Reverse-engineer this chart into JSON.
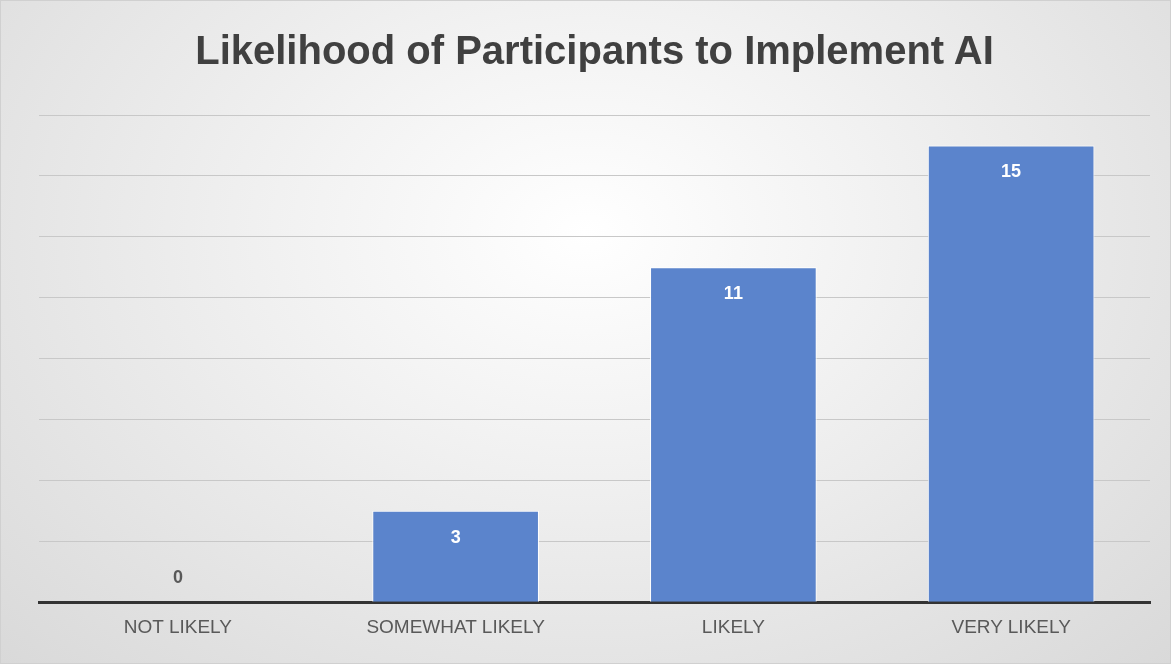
{
  "chart_data": {
    "type": "bar",
    "title": "Likelihood of Participants to Implement AI",
    "categories": [
      "NOT LIKELY",
      "SOMEWHAT LIKELY",
      "LIKELY",
      "VERY LIKELY"
    ],
    "values": [
      0,
      3,
      11,
      15
    ],
    "color": "#5b84cc",
    "tick_labels": "x",
    "grid": "y",
    "legend": false,
    "data_labels": true
  }
}
